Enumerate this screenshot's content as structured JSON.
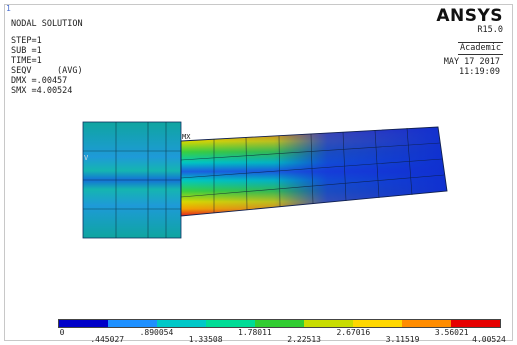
{
  "corner_number": "1",
  "plot_info": {
    "title": "NODAL SOLUTION",
    "step": "STEP=1",
    "sub": "SUB =1",
    "time": "TIME=1",
    "result": "SEQV     (AVG)",
    "dmx": "DMX =.00457",
    "smx": "SMX =4.00524"
  },
  "brand": {
    "logo": "ANSYS",
    "version": "R15.0",
    "license": "Academic"
  },
  "datetime": {
    "date": "MAY 17 2017",
    "time": "11:19:09"
  },
  "model_label": "MX",
  "side_label": "V",
  "legend": {
    "colors": [
      "#0000c8",
      "#1e90ff",
      "#00c8c8",
      "#00dc96",
      "#32cd32",
      "#c8dc00",
      "#ffd700",
      "#ff8c00",
      "#e60000"
    ],
    "upper_labels": [
      "0",
      ".890054",
      "1.78011",
      "2.67016",
      "3.56021"
    ],
    "lower_labels": [
      ".445027",
      "1.33508",
      "2.22513",
      "3.11519",
      "4.00524"
    ]
  }
}
